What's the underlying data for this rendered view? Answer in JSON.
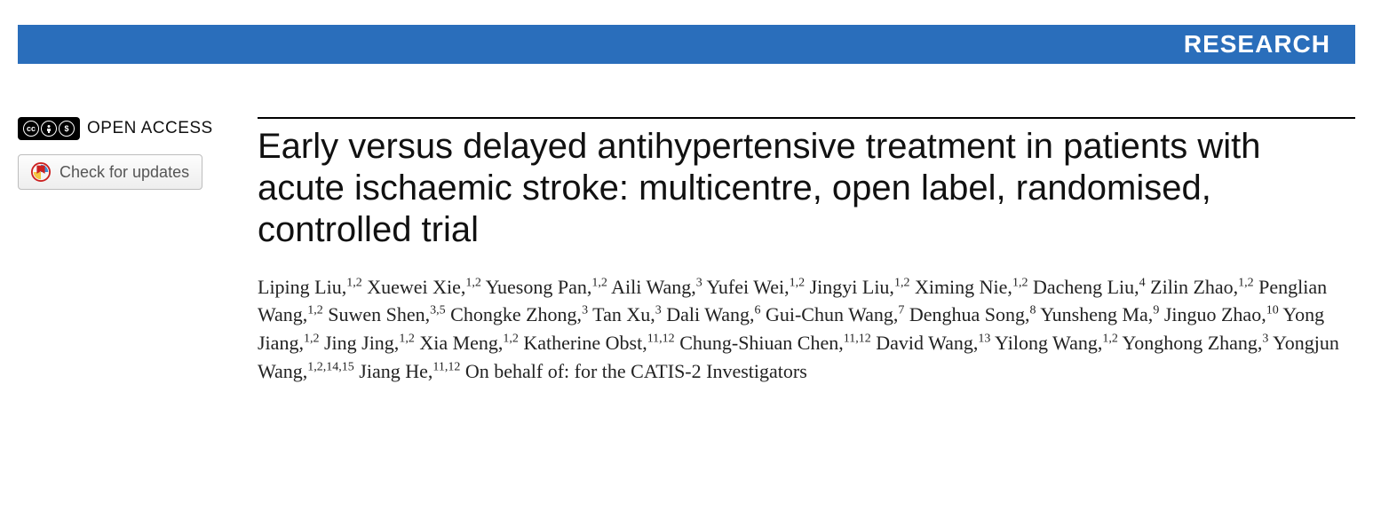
{
  "banner": {
    "label": "RESEARCH",
    "bg_color": "#2a6ebb",
    "text_color": "#ffffff"
  },
  "sidebar": {
    "open_access_label": "OPEN ACCESS",
    "cc_icons": [
      "CC",
      "➀",
      "$"
    ],
    "updates_label": "Check for updates"
  },
  "article": {
    "title": "Early versus delayed antihypertensive treatment in patients with acute ischaemic stroke: multicentre, open label, randomised, controlled trial",
    "authors": [
      {
        "name": "Liping Liu",
        "affils": "1,2"
      },
      {
        "name": "Xuewei Xie",
        "affils": "1,2"
      },
      {
        "name": "Yuesong Pan",
        "affils": "1,2"
      },
      {
        "name": "Aili Wang",
        "affils": "3"
      },
      {
        "name": "Yufei Wei",
        "affils": "1,2"
      },
      {
        "name": "Jingyi Liu",
        "affils": "1,2"
      },
      {
        "name": "Ximing Nie",
        "affils": "1,2"
      },
      {
        "name": "Dacheng Liu",
        "affils": "4"
      },
      {
        "name": "Zilin Zhao",
        "affils": "1,2"
      },
      {
        "name": "Penglian Wang",
        "affils": "1,2"
      },
      {
        "name": "Suwen Shen",
        "affils": "3,5"
      },
      {
        "name": "Chongke Zhong",
        "affils": "3"
      },
      {
        "name": "Tan Xu",
        "affils": "3"
      },
      {
        "name": "Dali Wang",
        "affils": "6"
      },
      {
        "name": "Gui-Chun Wang",
        "affils": "7"
      },
      {
        "name": "Denghua Song",
        "affils": "8"
      },
      {
        "name": "Yunsheng Ma",
        "affils": "9"
      },
      {
        "name": "Jinguo Zhao",
        "affils": "10"
      },
      {
        "name": "Yong Jiang",
        "affils": "1,2"
      },
      {
        "name": "Jing Jing",
        "affils": "1,2"
      },
      {
        "name": "Xia Meng",
        "affils": "1,2"
      },
      {
        "name": "Katherine Obst",
        "affils": "11,12"
      },
      {
        "name": "Chung-Shiuan Chen",
        "affils": "11,12"
      },
      {
        "name": "David Wang",
        "affils": "13"
      },
      {
        "name": "Yilong Wang",
        "affils": "1,2"
      },
      {
        "name": "Yonghong Zhang",
        "affils": "3"
      },
      {
        "name": "Yongjun Wang",
        "affils": "1,2,14,15"
      },
      {
        "name": "Jiang He",
        "affils": "11,12"
      }
    ],
    "on_behalf": "On behalf of: for the CATIS-2 Investigators"
  },
  "style": {
    "title_fontsize": 40,
    "author_fontsize": 22,
    "banner_fontsize": 28,
    "body_bg": "#ffffff",
    "rule_color": "#000000"
  }
}
